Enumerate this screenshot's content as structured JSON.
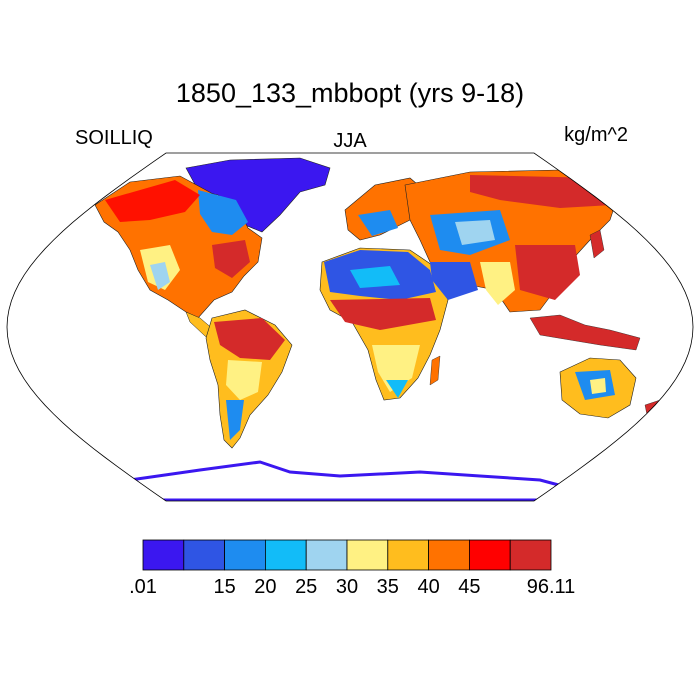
{
  "title": "1850_133_mbbopt (yrs 9-18)",
  "left_label": "SOILLIQ",
  "center_label": "JJA",
  "right_label": "kg/m^2",
  "colorbar": {
    "colors": [
      "#3b17f0",
      "#2f55e4",
      "#1e8cf0",
      "#12bcf8",
      "#9fd4f0",
      "#fff183",
      "#ffbd1e",
      "#ff7200",
      "#ff0000",
      "#d42a2a"
    ],
    "labels": [
      ".01",
      "15",
      "20",
      "25",
      "30",
      "35",
      "40",
      "45",
      "96.11"
    ],
    "label_bins": [
      0,
      2,
      3,
      4,
      5,
      6,
      7,
      8,
      10
    ]
  }
}
